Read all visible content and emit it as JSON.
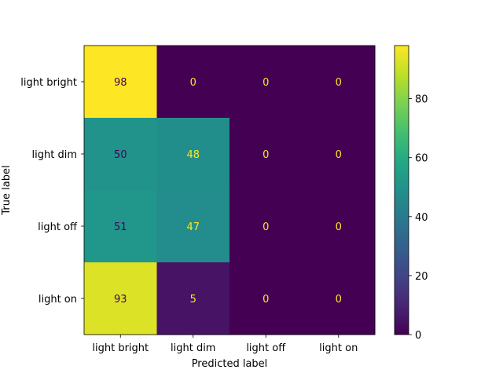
{
  "chart_data": {
    "type": "heatmap",
    "xlabel": "Predicted label",
    "ylabel": "True label",
    "x_categories": [
      "light bright",
      "light dim",
      "light off",
      "light on"
    ],
    "y_categories": [
      "light bright",
      "light dim",
      "light off",
      "light on"
    ],
    "values": [
      [
        98,
        0,
        0,
        0
      ],
      [
        50,
        48,
        0,
        0
      ],
      [
        51,
        47,
        0,
        0
      ],
      [
        93,
        5,
        0,
        0
      ]
    ],
    "colormap": "viridis",
    "vmin": 0,
    "vmax": 98,
    "colorbar_ticks": [
      0,
      20,
      40,
      60,
      80
    ],
    "grid": false
  }
}
